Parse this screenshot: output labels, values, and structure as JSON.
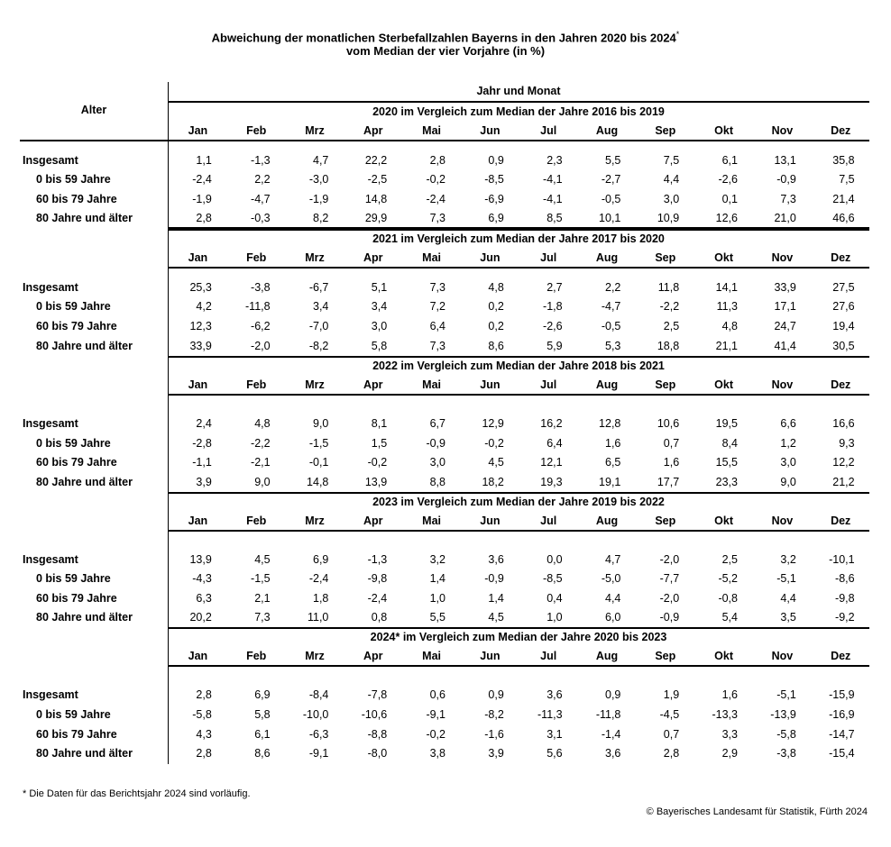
{
  "title_line1": "Abweichung der monatlichen Sterbefallzahlen Bayerns in den Jahren 2020 bis 2024",
  "title_star": "*",
  "title_line2": "vom Median der vier Vorjahre (in %)",
  "header": {
    "alter": "Alter",
    "jahr_und_monat": "Jahr und Monat"
  },
  "months": [
    "Jan",
    "Feb",
    "Mrz",
    "Apr",
    "Mai",
    "Jun",
    "Jul",
    "Aug",
    "Sep",
    "Okt",
    "Nov",
    "Dez"
  ],
  "row_labels": [
    "Insgesamt",
    "0 bis 59 Jahre",
    "60 bis 79 Jahre",
    "80 Jahre und älter"
  ],
  "sections": [
    {
      "title": "2020 im Vergleich zum Median der Jahre 2016 bis 2019",
      "rows": [
        [
          "1,1",
          "-1,3",
          "4,7",
          "22,2",
          "2,8",
          "0,9",
          "2,3",
          "5,5",
          "7,5",
          "6,1",
          "13,1",
          "35,8"
        ],
        [
          "-2,4",
          "2,2",
          "-3,0",
          "-2,5",
          "-0,2",
          "-8,5",
          "-4,1",
          "-2,7",
          "4,4",
          "-2,6",
          "-0,9",
          "7,5"
        ],
        [
          "-1,9",
          "-4,7",
          "-1,9",
          "14,8",
          "-2,4",
          "-6,9",
          "-4,1",
          "-0,5",
          "3,0",
          "0,1",
          "7,3",
          "21,4"
        ],
        [
          "2,8",
          "-0,3",
          "8,2",
          "29,9",
          "7,3",
          "6,9",
          "8,5",
          "10,1",
          "10,9",
          "12,6",
          "21,0",
          "46,6"
        ]
      ]
    },
    {
      "title": "2021 im Vergleich zum Median der Jahre 2017 bis 2020",
      "rows": [
        [
          "25,3",
          "-3,8",
          "-6,7",
          "5,1",
          "7,3",
          "4,8",
          "2,7",
          "2,2",
          "11,8",
          "14,1",
          "33,9",
          "27,5"
        ],
        [
          "4,2",
          "-11,8",
          "3,4",
          "3,4",
          "7,2",
          "0,2",
          "-1,8",
          "-4,7",
          "-2,2",
          "11,3",
          "17,1",
          "27,6"
        ],
        [
          "12,3",
          "-6,2",
          "-7,0",
          "3,0",
          "6,4",
          "0,2",
          "-2,6",
          "-0,5",
          "2,5",
          "4,8",
          "24,7",
          "19,4"
        ],
        [
          "33,9",
          "-2,0",
          "-8,2",
          "5,8",
          "7,3",
          "8,6",
          "5,9",
          "5,3",
          "18,8",
          "21,1",
          "41,4",
          "30,5"
        ]
      ]
    },
    {
      "title": "2022 im Vergleich zum Median der Jahre 2018 bis 2021",
      "rows": [
        [
          "2,4",
          "4,8",
          "9,0",
          "8,1",
          "6,7",
          "12,9",
          "16,2",
          "12,8",
          "10,6",
          "19,5",
          "6,6",
          "16,6"
        ],
        [
          "-2,8",
          "-2,2",
          "-1,5",
          "1,5",
          "-0,9",
          "-0,2",
          "6,4",
          "1,6",
          "0,7",
          "8,4",
          "1,2",
          "9,3"
        ],
        [
          "-1,1",
          "-2,1",
          "-0,1",
          "-0,2",
          "3,0",
          "4,5",
          "12,1",
          "6,5",
          "1,6",
          "15,5",
          "3,0",
          "12,2"
        ],
        [
          "3,9",
          "9,0",
          "14,8",
          "13,9",
          "8,8",
          "18,2",
          "19,3",
          "19,1",
          "17,7",
          "23,3",
          "9,0",
          "21,2"
        ]
      ]
    },
    {
      "title": "2023 im Vergleich zum Median der Jahre 2019 bis 2022",
      "rows": [
        [
          "13,9",
          "4,5",
          "6,9",
          "-1,3",
          "3,2",
          "3,6",
          "0,0",
          "4,7",
          "-2,0",
          "2,5",
          "3,2",
          "-10,1"
        ],
        [
          "-4,3",
          "-1,5",
          "-2,4",
          "-9,8",
          "1,4",
          "-0,9",
          "-8,5",
          "-5,0",
          "-7,7",
          "-5,2",
          "-5,1",
          "-8,6"
        ],
        [
          "6,3",
          "2,1",
          "1,8",
          "-2,4",
          "1,0",
          "1,4",
          "0,4",
          "4,4",
          "-2,0",
          "-0,8",
          "4,4",
          "-9,8"
        ],
        [
          "20,2",
          "7,3",
          "11,0",
          "0,8",
          "5,5",
          "4,5",
          "1,0",
          "6,0",
          "-0,9",
          "5,4",
          "3,5",
          "-9,2"
        ]
      ]
    },
    {
      "title": "2024* im Vergleich zum Median der Jahre 2020 bis 2023",
      "rows": [
        [
          "2,8",
          "6,9",
          "-8,4",
          "-7,8",
          "0,6",
          "0,9",
          "3,6",
          "0,9",
          "1,9",
          "1,6",
          "-5,1",
          "-15,9"
        ],
        [
          "-5,8",
          "5,8",
          "-10,0",
          "-10,6",
          "-9,1",
          "-8,2",
          "-11,3",
          "-11,8",
          "-4,5",
          "-13,3",
          "-13,9",
          "-16,9"
        ],
        [
          "4,3",
          "6,1",
          "-6,3",
          "-8,8",
          "-0,2",
          "-1,6",
          "3,1",
          "-1,4",
          "0,7",
          "3,3",
          "-5,8",
          "-14,7"
        ],
        [
          "2,8",
          "8,6",
          "-9,1",
          "-8,0",
          "3,8",
          "3,9",
          "5,6",
          "3,6",
          "2,8",
          "2,9",
          "-3,8",
          "-15,4"
        ]
      ]
    }
  ],
  "footnote": "* Die Daten für das Berichtsjahr 2024 sind vorläufig.",
  "copyright": "© Bayerisches Landesamt für Statistik, Fürth 2024"
}
